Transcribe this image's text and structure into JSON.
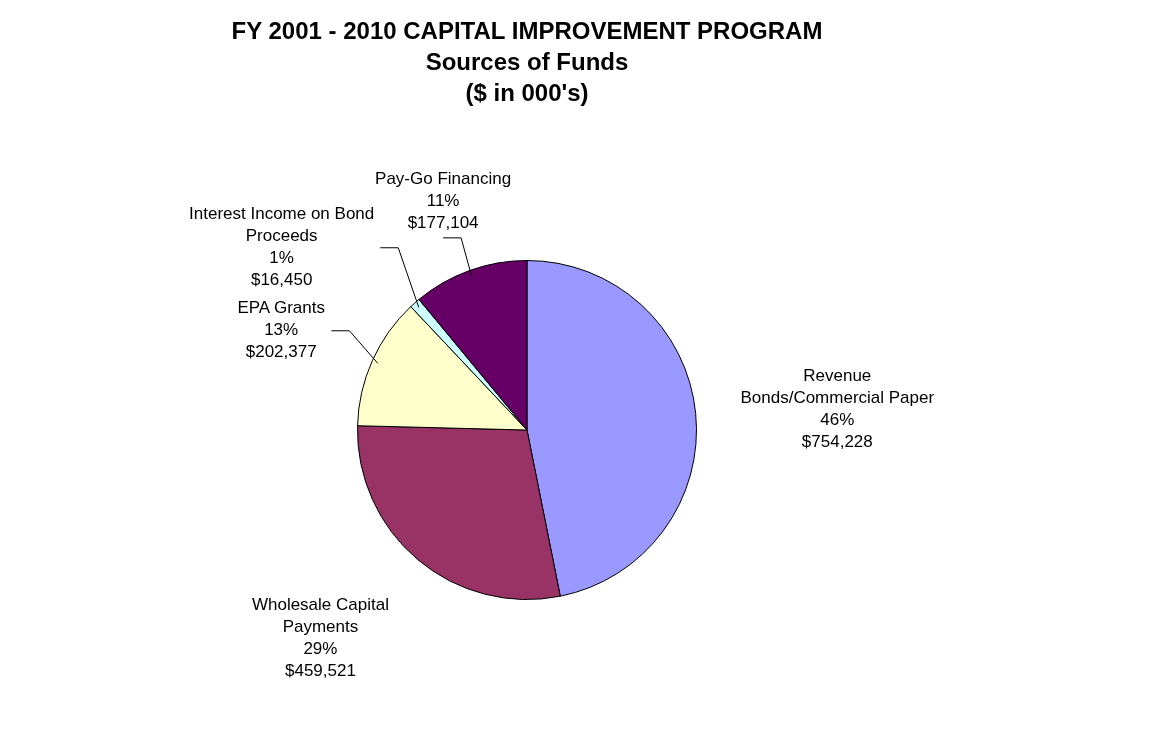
{
  "chart_data": {
    "type": "pie",
    "title": "FY 2001 - 2010 CAPITAL IMPROVEMENT PROGRAM",
    "subtitle": "Sources of Funds\n($ in 000's)",
    "categories": [
      "Revenue Bonds/Commercial Paper",
      "Wholesale Capital Payments",
      "EPA Grants",
      "Interest Income on Bond Proceeds",
      "Pay-Go Financing"
    ],
    "values": [
      754228,
      459521,
      202377,
      16450,
      177104
    ],
    "colors": [
      "#9999ff",
      "#993366",
      "#ffffcc",
      "#ccffff",
      "#660066"
    ],
    "value_labels": [
      "46%\n$754,228",
      "29%\n$459,521",
      "13%\n$202,377",
      "1%\n$16,450",
      "11%\n$177,104"
    ],
    "legend": false
  }
}
